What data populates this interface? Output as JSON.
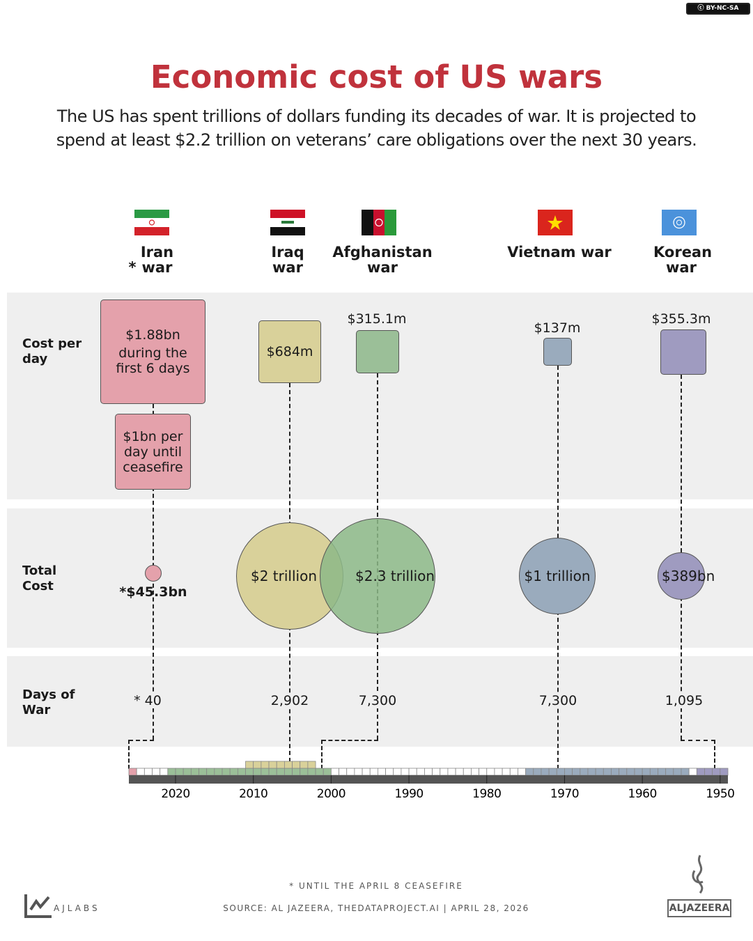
{
  "license_badge": "BY-NC-SA",
  "title": "Economic cost of US wars",
  "subtitle": "The US has spent trillions of dollars funding its decades of war. It is projected to spend at least $2.2 trillion on veterans’ care obligations over the next 30 years.",
  "row_labels": {
    "cost_per_day": "Cost per day",
    "total_cost": "Total Cost",
    "days_of_war": "Days of War"
  },
  "wars": [
    {
      "name": "Iran war",
      "asterisk": "*",
      "flag": "iran-flag",
      "color": "#e4a1ab",
      "cost_per_day": "$1.88bn during the first 6 days",
      "cost_per_day_line1": "$1.88bn",
      "cost_per_day_line2": "during the first 6 days",
      "cost_per_day_2": "$1bn per day until ceasefire",
      "total_cost": "*$45.3bn",
      "days": "* 40"
    },
    {
      "name": "Iraq war",
      "flag": "iraq-flag",
      "color": "#d9d19a",
      "cost_per_day": "$684m",
      "total_cost": "$2 trillion",
      "days": "2,902"
    },
    {
      "name": "Afghanistan war",
      "flag": "afghanistan-flag",
      "color": "#9bbf98",
      "cost_per_day": "$315.1m",
      "total_cost": "$2.3 trillion",
      "days": "7,300"
    },
    {
      "name": "Vietnam war",
      "flag": "vietnam-flag",
      "color": "#9aabbd",
      "cost_per_day": "$137m",
      "total_cost": "$1 trillion",
      "days": "7,300"
    },
    {
      "name": "Korean war",
      "flag": "un-flag",
      "color": "#9f9bc0",
      "cost_per_day": "$355.3m",
      "total_cost": "$389bn",
      "days": "1,095"
    }
  ],
  "chart_data": {
    "type": "timeline",
    "x_ticks": [
      "2020",
      "2010",
      "2000",
      "1990",
      "1980",
      "1970",
      "1960",
      "1950"
    ],
    "xlim": [
      2026,
      1950
    ],
    "periods": [
      {
        "war": "Iran war",
        "start": 2026,
        "end": 2026,
        "color": "#e4a1ab"
      },
      {
        "war": "Afghanistan war",
        "start": 2001,
        "end": 2021,
        "color": "#9bbf98"
      },
      {
        "war": "Iraq war",
        "start": 2003,
        "end": 2011,
        "color": "#d9d19a"
      },
      {
        "war": "Vietnam war",
        "start": 1955,
        "end": 1975,
        "color": "#9aabbd"
      },
      {
        "war": "Korean war",
        "start": 1950,
        "end": 1953,
        "color": "#9f9bc0"
      }
    ]
  },
  "footer": {
    "note": "* UNTIL THE APRIL 8 CEASEFIRE",
    "source": "SOURCE:  AL JAZEERA, THEDATAPROJECT.AI  |  APRIL 28, 2026",
    "ajlabs": "AJLABS",
    "aljazeera": "ALJAZEERA"
  }
}
